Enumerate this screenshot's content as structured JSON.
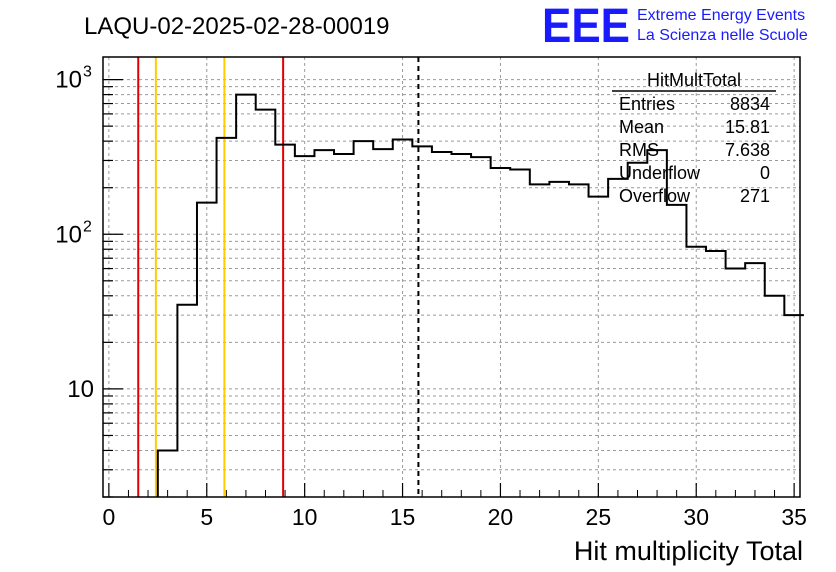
{
  "chart_data": {
    "type": "histogram",
    "title": "LAQU-02-2025-02-28-00019",
    "xlabel": "Hit multiplicity Total",
    "ylabel": "",
    "xlim": [
      -0.3,
      35.3
    ],
    "ylim": [
      2,
      1400
    ],
    "log_y": true,
    "grid": true,
    "bin_width": 1,
    "bins": [
      {
        "x0": 2.5,
        "y": 4
      },
      {
        "x0": 3.5,
        "y": 35
      },
      {
        "x0": 4.5,
        "y": 160
      },
      {
        "x0": 5.5,
        "y": 420
      },
      {
        "x0": 6.5,
        "y": 800
      },
      {
        "x0": 7.5,
        "y": 640
      },
      {
        "x0": 8.5,
        "y": 380
      },
      {
        "x0": 9.5,
        "y": 320
      },
      {
        "x0": 10.5,
        "y": 350
      },
      {
        "x0": 11.5,
        "y": 330
      },
      {
        "x0": 12.5,
        "y": 400
      },
      {
        "x0": 13.5,
        "y": 355
      },
      {
        "x0": 14.5,
        "y": 410
      },
      {
        "x0": 15.5,
        "y": 370
      },
      {
        "x0": 16.5,
        "y": 340
      },
      {
        "x0": 17.5,
        "y": 330
      },
      {
        "x0": 18.5,
        "y": 315
      },
      {
        "x0": 19.5,
        "y": 268
      },
      {
        "x0": 20.5,
        "y": 262
      },
      {
        "x0": 21.5,
        "y": 210
      },
      {
        "x0": 22.5,
        "y": 218
      },
      {
        "x0": 23.5,
        "y": 210
      },
      {
        "x0": 24.5,
        "y": 175
      },
      {
        "x0": 25.5,
        "y": 228
      },
      {
        "x0": 26.5,
        "y": 290
      },
      {
        "x0": 27.5,
        "y": 350
      },
      {
        "x0": 28.5,
        "y": 155
      },
      {
        "x0": 29.5,
        "y": 83
      },
      {
        "x0": 30.5,
        "y": 78
      },
      {
        "x0": 31.5,
        "y": 60
      },
      {
        "x0": 32.5,
        "y": 65
      },
      {
        "x0": 33.5,
        "y": 40
      },
      {
        "x0": 34.5,
        "y": 30
      }
    ],
    "x_ticks": [
      "0",
      "5",
      "10",
      "15",
      "20",
      "25",
      "30",
      "35"
    ],
    "y_ticks": [
      {
        "value": 10,
        "base": "10",
        "exp": ""
      },
      {
        "value": 100,
        "base": "10",
        "exp": "2"
      },
      {
        "value": 1000,
        "base": "10",
        "exp": "3"
      }
    ],
    "vlines": [
      {
        "x": 1.5,
        "color": "#e00000",
        "style": "solid"
      },
      {
        "x": 2.4,
        "color": "#ffcc00",
        "style": "solid"
      },
      {
        "x": 5.9,
        "color": "#ffcc00",
        "style": "solid"
      },
      {
        "x": 8.9,
        "color": "#e00000",
        "style": "solid"
      },
      {
        "x": 15.81,
        "color": "#000000",
        "style": "dashed"
      }
    ]
  },
  "stats": {
    "title": "HitMultTotal",
    "rows": [
      {
        "label": "Entries",
        "value": "8834"
      },
      {
        "label": "Mean",
        "value": "15.81"
      },
      {
        "label": "RMS",
        "value": "7.638"
      },
      {
        "label": "Underflow",
        "value": "0"
      },
      {
        "label": "Overflow",
        "value": "271"
      }
    ]
  },
  "logo": {
    "mark": "EEE",
    "line1": "Extreme Energy Events",
    "line2": "La Scienza nelle Scuole",
    "color": "#1a1aff"
  }
}
